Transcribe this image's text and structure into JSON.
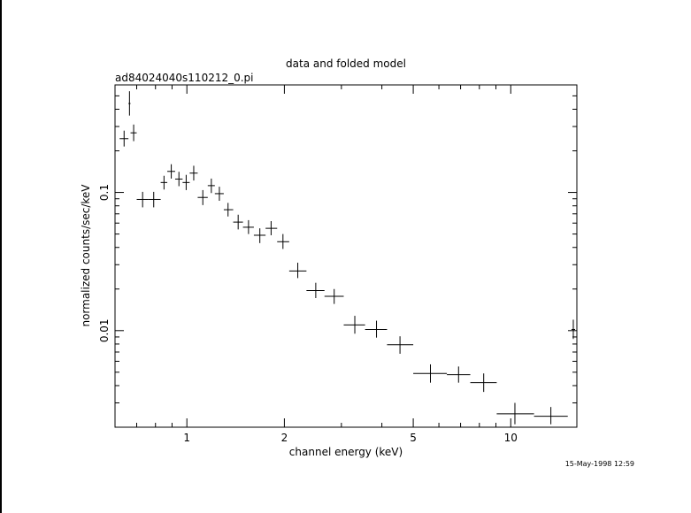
{
  "chart_data": {
    "type": "scatter",
    "title": "data and folded model",
    "subtitle": "ad84024040s110212_0.pi",
    "xlabel": "channel energy (keV)",
    "ylabel": "normalized counts/sec/keV",
    "xscale": "log",
    "yscale": "log",
    "xlim": [
      0.6,
      16.0
    ],
    "ylim": [
      0.002,
      0.6
    ],
    "x_tick_labels": [
      {
        "value": 1,
        "label": "1"
      },
      {
        "value": 2,
        "label": "2"
      },
      {
        "value": 5,
        "label": "5"
      },
      {
        "value": 10,
        "label": "10"
      }
    ],
    "y_tick_labels": [
      {
        "value": 0.1,
        "label": "0.1"
      },
      {
        "value": 0.01,
        "label": "0.01"
      }
    ],
    "grid": false,
    "series": [
      {
        "points": [
          {
            "x": 0.64,
            "y": 0.245,
            "xerr": [
              0.62,
              0.66
            ],
            "yerr": [
              0.215,
              0.28
            ]
          },
          {
            "x": 0.665,
            "y": 0.44,
            "xerr": [
              0.66,
              0.67
            ],
            "yerr": [
              0.36,
              0.54
            ]
          },
          {
            "x": 0.685,
            "y": 0.27,
            "xerr": [
              0.67,
              0.7
            ],
            "yerr": [
              0.235,
              0.31
            ]
          },
          {
            "x": 0.73,
            "y": 0.089,
            "xerr": [
              0.7,
              0.76
            ],
            "yerr": [
              0.078,
              0.101
            ]
          },
          {
            "x": 0.79,
            "y": 0.089,
            "xerr": [
              0.76,
              0.83
            ],
            "yerr": [
              0.078,
              0.101
            ]
          },
          {
            "x": 0.85,
            "y": 0.118,
            "xerr": [
              0.83,
              0.87
            ],
            "yerr": [
              0.105,
              0.132
            ]
          },
          {
            "x": 0.895,
            "y": 0.142,
            "xerr": [
              0.87,
              0.92
            ],
            "yerr": [
              0.126,
              0.16
            ]
          },
          {
            "x": 0.945,
            "y": 0.125,
            "xerr": [
              0.92,
              0.97
            ],
            "yerr": [
              0.111,
              0.141
            ]
          },
          {
            "x": 0.995,
            "y": 0.118,
            "xerr": [
              0.97,
              1.02
            ],
            "yerr": [
              0.104,
              0.134
            ]
          },
          {
            "x": 1.05,
            "y": 0.138,
            "xerr": [
              1.02,
              1.08
            ],
            "yerr": [
              0.122,
              0.156
            ]
          },
          {
            "x": 1.12,
            "y": 0.092,
            "xerr": [
              1.08,
              1.16
            ],
            "yerr": [
              0.081,
              0.104
            ]
          },
          {
            "x": 1.19,
            "y": 0.112,
            "xerr": [
              1.16,
              1.22
            ],
            "yerr": [
              0.099,
              0.126
            ]
          },
          {
            "x": 1.26,
            "y": 0.098,
            "xerr": [
              1.22,
              1.3
            ],
            "yerr": [
              0.087,
              0.11
            ]
          },
          {
            "x": 1.34,
            "y": 0.075,
            "xerr": [
              1.3,
              1.39
            ],
            "yerr": [
              0.067,
              0.084
            ]
          },
          {
            "x": 1.44,
            "y": 0.061,
            "xerr": [
              1.39,
              1.49
            ],
            "yerr": [
              0.054,
              0.069
            ]
          },
          {
            "x": 1.55,
            "y": 0.056,
            "xerr": [
              1.49,
              1.61
            ],
            "yerr": [
              0.05,
              0.063
            ]
          },
          {
            "x": 1.68,
            "y": 0.049,
            "xerr": [
              1.61,
              1.75
            ],
            "yerr": [
              0.043,
              0.055
            ]
          },
          {
            "x": 1.82,
            "y": 0.055,
            "xerr": [
              1.75,
              1.9
            ],
            "yerr": [
              0.049,
              0.062
            ]
          },
          {
            "x": 1.98,
            "y": 0.044,
            "xerr": [
              1.9,
              2.07
            ],
            "yerr": [
              0.039,
              0.05
            ]
          },
          {
            "x": 2.2,
            "y": 0.027,
            "xerr": [
              2.07,
              2.34
            ],
            "yerr": [
              0.024,
              0.031
            ]
          },
          {
            "x": 2.5,
            "y": 0.0195,
            "xerr": [
              2.34,
              2.66
            ],
            "yerr": [
              0.0172,
              0.0222
            ]
          },
          {
            "x": 2.85,
            "y": 0.0177,
            "xerr": [
              2.66,
              3.05
            ],
            "yerr": [
              0.0156,
              0.02
            ]
          },
          {
            "x": 3.3,
            "y": 0.011,
            "xerr": [
              3.05,
              3.55
            ],
            "yerr": [
              0.0095,
              0.0128
            ]
          },
          {
            "x": 3.85,
            "y": 0.0102,
            "xerr": [
              3.55,
              4.15
            ],
            "yerr": [
              0.0089,
              0.0118
            ]
          },
          {
            "x": 4.55,
            "y": 0.0079,
            "xerr": [
              4.15,
              5.0
            ],
            "yerr": [
              0.0068,
              0.0091
            ]
          },
          {
            "x": 5.65,
            "y": 0.0049,
            "xerr": [
              5.0,
              6.35
            ],
            "yerr": [
              0.0042,
              0.0057
            ]
          },
          {
            "x": 6.9,
            "y": 0.0048,
            "xerr": [
              6.35,
              7.5
            ],
            "yerr": [
              0.0042,
              0.0055
            ]
          },
          {
            "x": 8.25,
            "y": 0.0042,
            "xerr": [
              7.5,
              9.05
            ],
            "yerr": [
              0.0036,
              0.0049
            ]
          },
          {
            "x": 10.3,
            "y": 0.0025,
            "xerr": [
              9.05,
              11.8
            ],
            "yerr": [
              0.0021,
              0.003
            ]
          },
          {
            "x": 13.3,
            "y": 0.0024,
            "xerr": [
              11.8,
              15.0
            ],
            "yerr": [
              0.0021,
              0.0028
            ]
          },
          {
            "x": 15.6,
            "y": 0.0102,
            "xerr": [
              15.4,
              15.8
            ],
            "yerr": [
              0.0087,
              0.012
            ]
          }
        ]
      }
    ],
    "colors": {
      "foreground": "#000000",
      "background": "#ffffff"
    }
  },
  "timestamp": "15-May-1998 12:59"
}
